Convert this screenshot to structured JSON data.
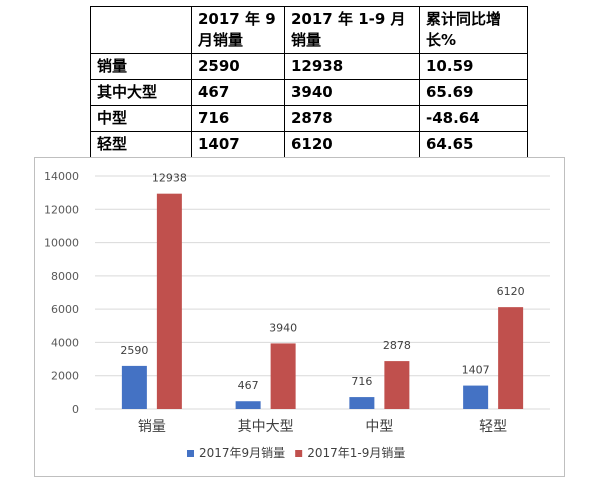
{
  "table": {
    "headers": [
      "",
      "2017 年 9 月销量",
      "2017 年 1-9 月销量",
      "累计同比增长%"
    ],
    "rows": [
      [
        "销量",
        "2590",
        "12938",
        "10.59"
      ],
      [
        "其中大型",
        "467",
        "3940",
        "65.69"
      ],
      [
        "中型",
        "716",
        "2878",
        "-48.64"
      ],
      [
        "轻型",
        "1407",
        "6120",
        "64.65"
      ]
    ]
  },
  "chart_data": {
    "type": "bar",
    "categories": [
      "销量",
      "其中大型",
      "中型",
      "轻型"
    ],
    "series": [
      {
        "name": "2017年9月销量",
        "values": [
          2590,
          467,
          716,
          1407
        ],
        "color": "#4472c4"
      },
      {
        "name": "2017年1-9月销量",
        "values": [
          12938,
          3940,
          2878,
          6120
        ],
        "color": "#c0504d"
      }
    ],
    "y_ticks": [
      0,
      2000,
      4000,
      6000,
      8000,
      10000,
      12000,
      14000
    ],
    "ylim": [
      0,
      14000
    ],
    "grid": true,
    "legend_position": "bottom"
  }
}
